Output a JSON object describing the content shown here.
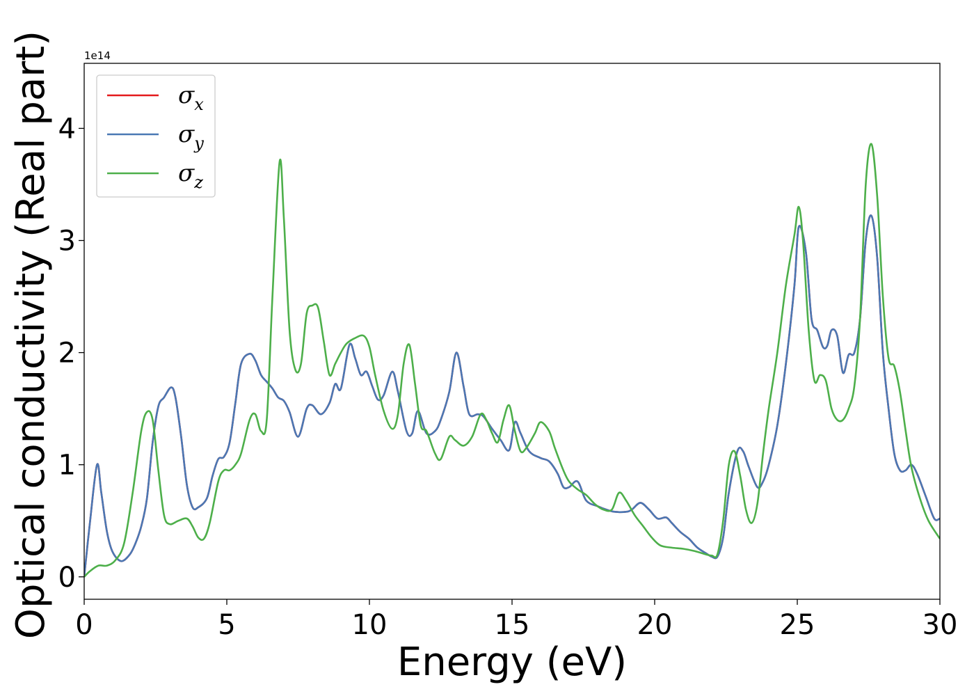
{
  "chart_data": {
    "type": "line",
    "xlabel": "Energy (eV)",
    "ylabel": "Optical conductivity (Real part)",
    "y_offset_label": "1e14",
    "xlim": [
      0,
      30
    ],
    "ylim": [
      -0.2,
      4.58
    ],
    "x_ticks": [
      0,
      5,
      10,
      15,
      20,
      25,
      30
    ],
    "x_tick_labels": [
      "0",
      "5",
      "10",
      "15",
      "20",
      "25",
      "30"
    ],
    "y_ticks": [
      0,
      1,
      2,
      3,
      4
    ],
    "y_tick_labels": [
      "0",
      "1",
      "2",
      "3",
      "4"
    ],
    "grid": false,
    "legend": {
      "placement": "top-left",
      "entries": [
        {
          "symbol": "σ",
          "sub": "x",
          "color": "#e41a1c"
        },
        {
          "symbol": "σ",
          "sub": "y",
          "color": "#4a78b4"
        },
        {
          "symbol": "σ",
          "sub": "z",
          "color": "#4daf4a"
        }
      ]
    },
    "series": [
      {
        "key": "x",
        "color": "#e41a1c",
        "x": [
          0,
          0.2,
          0.45,
          0.6,
          0.8,
          1.0,
          1.3,
          1.6,
          1.8,
          2.0,
          2.2,
          2.4,
          2.6,
          2.8,
          3.05,
          3.2,
          3.4,
          3.6,
          3.8,
          4.0,
          4.3,
          4.5,
          4.7,
          4.9,
          5.1,
          5.3,
          5.5,
          5.8,
          6.0,
          6.2,
          6.4,
          6.6,
          6.8,
          7.0,
          7.2,
          7.5,
          7.8,
          8.0,
          8.3,
          8.6,
          8.8,
          9.0,
          9.3,
          9.5,
          9.7,
          9.9,
          10.1,
          10.3,
          10.5,
          10.8,
          11.0,
          11.3,
          11.5,
          11.7,
          12.0,
          12.3,
          12.5,
          12.8,
          13.05,
          13.3,
          13.5,
          13.8,
          14.0,
          14.3,
          14.6,
          14.9,
          15.1,
          15.3,
          15.6,
          16.0,
          16.3,
          16.6,
          16.8,
          17.0,
          17.3,
          17.6,
          18.0,
          18.3,
          18.6,
          19.0,
          19.2,
          19.5,
          19.8,
          20.1,
          20.4,
          20.6,
          20.9,
          21.2,
          21.5,
          21.8,
          22.0,
          22.2,
          22.4,
          22.6,
          22.9,
          23.1,
          23.3,
          23.6,
          23.8,
          24.0,
          24.3,
          24.6,
          24.9,
          25.05,
          25.3,
          25.5,
          25.7,
          25.9,
          26.05,
          26.2,
          26.4,
          26.6,
          26.8,
          27.0,
          27.2,
          27.4,
          27.6,
          27.8,
          28.0,
          28.2,
          28.4,
          28.6,
          28.8,
          29.0,
          29.2,
          29.5,
          29.8,
          30.0
        ],
        "y": [
          0,
          0.48,
          1.0,
          0.75,
          0.4,
          0.22,
          0.14,
          0.2,
          0.3,
          0.45,
          0.7,
          1.2,
          1.52,
          1.6,
          1.69,
          1.6,
          1.25,
          0.82,
          0.62,
          0.62,
          0.7,
          0.9,
          1.05,
          1.07,
          1.2,
          1.55,
          1.9,
          1.99,
          1.93,
          1.8,
          1.74,
          1.68,
          1.6,
          1.57,
          1.47,
          1.25,
          1.5,
          1.53,
          1.45,
          1.55,
          1.72,
          1.68,
          2.07,
          1.95,
          1.8,
          1.83,
          1.7,
          1.58,
          1.62,
          1.83,
          1.65,
          1.3,
          1.28,
          1.48,
          1.28,
          1.3,
          1.4,
          1.65,
          2.0,
          1.7,
          1.45,
          1.45,
          1.43,
          1.32,
          1.22,
          1.13,
          1.38,
          1.28,
          1.12,
          1.06,
          1.03,
          0.92,
          0.8,
          0.8,
          0.85,
          0.68,
          0.63,
          0.6,
          0.58,
          0.58,
          0.6,
          0.66,
          0.6,
          0.52,
          0.53,
          0.48,
          0.4,
          0.34,
          0.26,
          0.21,
          0.18,
          0.18,
          0.35,
          0.75,
          1.12,
          1.12,
          0.98,
          0.8,
          0.85,
          1.0,
          1.35,
          1.9,
          2.6,
          3.12,
          2.9,
          2.3,
          2.2,
          2.05,
          2.06,
          2.2,
          2.15,
          1.82,
          1.98,
          2.0,
          2.3,
          3.0,
          3.22,
          2.85,
          2.0,
          1.5,
          1.1,
          0.95,
          0.95,
          1.0,
          0.92,
          0.72,
          0.52,
          0.52
        ]
      },
      {
        "key": "y",
        "color": "#4a78b4",
        "x": [
          0,
          0.2,
          0.45,
          0.6,
          0.8,
          1.0,
          1.3,
          1.6,
          1.8,
          2.0,
          2.2,
          2.4,
          2.6,
          2.8,
          3.05,
          3.2,
          3.4,
          3.6,
          3.8,
          4.0,
          4.3,
          4.5,
          4.7,
          4.9,
          5.1,
          5.3,
          5.5,
          5.8,
          6.0,
          6.2,
          6.4,
          6.6,
          6.8,
          7.0,
          7.2,
          7.5,
          7.8,
          8.0,
          8.3,
          8.6,
          8.8,
          9.0,
          9.3,
          9.5,
          9.7,
          9.9,
          10.1,
          10.3,
          10.5,
          10.8,
          11.0,
          11.3,
          11.5,
          11.7,
          12.0,
          12.3,
          12.5,
          12.8,
          13.05,
          13.3,
          13.5,
          13.8,
          14.0,
          14.3,
          14.6,
          14.9,
          15.1,
          15.3,
          15.6,
          16.0,
          16.3,
          16.6,
          16.8,
          17.0,
          17.3,
          17.6,
          18.0,
          18.3,
          18.6,
          19.0,
          19.2,
          19.5,
          19.8,
          20.1,
          20.4,
          20.6,
          20.9,
          21.2,
          21.5,
          21.8,
          22.0,
          22.2,
          22.4,
          22.6,
          22.9,
          23.1,
          23.3,
          23.6,
          23.8,
          24.0,
          24.3,
          24.6,
          24.9,
          25.05,
          25.3,
          25.5,
          25.7,
          25.9,
          26.05,
          26.2,
          26.4,
          26.6,
          26.8,
          27.0,
          27.2,
          27.4,
          27.6,
          27.8,
          28.0,
          28.2,
          28.4,
          28.6,
          28.8,
          29.0,
          29.2,
          29.5,
          29.8,
          30.0
        ],
        "y": [
          0,
          0.48,
          1.0,
          0.75,
          0.4,
          0.22,
          0.14,
          0.2,
          0.3,
          0.45,
          0.7,
          1.2,
          1.52,
          1.6,
          1.69,
          1.6,
          1.25,
          0.82,
          0.62,
          0.62,
          0.7,
          0.9,
          1.05,
          1.07,
          1.2,
          1.55,
          1.9,
          1.99,
          1.93,
          1.8,
          1.74,
          1.68,
          1.6,
          1.57,
          1.47,
          1.25,
          1.5,
          1.53,
          1.45,
          1.55,
          1.72,
          1.68,
          2.07,
          1.95,
          1.8,
          1.83,
          1.7,
          1.58,
          1.62,
          1.83,
          1.65,
          1.3,
          1.28,
          1.48,
          1.28,
          1.3,
          1.4,
          1.65,
          2.0,
          1.7,
          1.45,
          1.45,
          1.43,
          1.32,
          1.22,
          1.13,
          1.38,
          1.28,
          1.12,
          1.06,
          1.03,
          0.92,
          0.8,
          0.8,
          0.85,
          0.68,
          0.63,
          0.6,
          0.58,
          0.58,
          0.6,
          0.66,
          0.6,
          0.52,
          0.53,
          0.48,
          0.4,
          0.34,
          0.26,
          0.21,
          0.18,
          0.18,
          0.35,
          0.75,
          1.12,
          1.12,
          0.98,
          0.8,
          0.85,
          1.0,
          1.35,
          1.9,
          2.6,
          3.12,
          2.9,
          2.3,
          2.2,
          2.05,
          2.06,
          2.2,
          2.15,
          1.82,
          1.98,
          2.0,
          2.3,
          3.0,
          3.22,
          2.85,
          2.0,
          1.5,
          1.1,
          0.95,
          0.95,
          1.0,
          0.92,
          0.72,
          0.52,
          0.52
        ]
      },
      {
        "key": "z",
        "color": "#4daf4a",
        "x": [
          0,
          0.2,
          0.5,
          0.8,
          1.1,
          1.4,
          1.7,
          2.0,
          2.2,
          2.4,
          2.6,
          2.8,
          3.0,
          3.3,
          3.6,
          3.8,
          4.0,
          4.2,
          4.4,
          4.7,
          4.9,
          5.1,
          5.3,
          5.5,
          5.8,
          6.0,
          6.2,
          6.4,
          6.6,
          6.85,
          7.0,
          7.2,
          7.4,
          7.6,
          7.8,
          8.0,
          8.2,
          8.4,
          8.6,
          8.8,
          9.0,
          9.2,
          9.5,
          9.8,
          10.0,
          10.2,
          10.5,
          10.8,
          11.0,
          11.2,
          11.4,
          11.6,
          11.8,
          12.0,
          12.3,
          12.5,
          12.8,
          13.0,
          13.3,
          13.6,
          13.9,
          14.1,
          14.3,
          14.5,
          14.7,
          14.9,
          15.1,
          15.3,
          15.5,
          15.8,
          16.0,
          16.3,
          16.5,
          16.8,
          17.0,
          17.3,
          17.6,
          17.9,
          18.2,
          18.5,
          18.75,
          19.0,
          19.3,
          19.6,
          19.9,
          20.2,
          20.6,
          21.0,
          21.4,
          21.8,
          22.0,
          22.2,
          22.4,
          22.6,
          22.8,
          23.0,
          23.2,
          23.4,
          23.6,
          23.8,
          24.0,
          24.3,
          24.6,
          24.9,
          25.05,
          25.2,
          25.4,
          25.6,
          25.8,
          26.0,
          26.2,
          26.4,
          26.6,
          26.8,
          27.0,
          27.2,
          27.4,
          27.6,
          27.8,
          28.0,
          28.2,
          28.4,
          28.6,
          28.8,
          29.0,
          29.3,
          29.6,
          30.0
        ],
        "y": [
          0,
          0.05,
          0.1,
          0.1,
          0.15,
          0.3,
          0.75,
          1.3,
          1.47,
          1.4,
          0.95,
          0.55,
          0.47,
          0.5,
          0.52,
          0.45,
          0.35,
          0.34,
          0.48,
          0.85,
          0.95,
          0.95,
          1.0,
          1.1,
          1.4,
          1.45,
          1.3,
          1.4,
          2.5,
          3.7,
          3.2,
          2.2,
          1.85,
          1.9,
          2.35,
          2.42,
          2.4,
          2.1,
          1.8,
          1.9,
          2.0,
          2.08,
          2.13,
          2.15,
          2.05,
          1.8,
          1.48,
          1.32,
          1.45,
          1.9,
          2.07,
          1.72,
          1.35,
          1.3,
          1.1,
          1.05,
          1.25,
          1.22,
          1.17,
          1.25,
          1.45,
          1.4,
          1.28,
          1.2,
          1.4,
          1.53,
          1.3,
          1.12,
          1.15,
          1.28,
          1.38,
          1.3,
          1.15,
          0.95,
          0.85,
          0.78,
          0.73,
          0.65,
          0.6,
          0.6,
          0.75,
          0.68,
          0.55,
          0.45,
          0.35,
          0.28,
          0.26,
          0.25,
          0.23,
          0.2,
          0.19,
          0.2,
          0.5,
          1.0,
          1.12,
          0.9,
          0.6,
          0.48,
          0.65,
          1.1,
          1.5,
          2.0,
          2.6,
          3.05,
          3.3,
          3.0,
          2.2,
          1.75,
          1.8,
          1.75,
          1.5,
          1.4,
          1.4,
          1.5,
          1.7,
          2.3,
          3.5,
          3.86,
          3.4,
          2.5,
          1.95,
          1.88,
          1.65,
          1.3,
          0.98,
          0.7,
          0.5,
          0.34
        ]
      }
    ]
  }
}
